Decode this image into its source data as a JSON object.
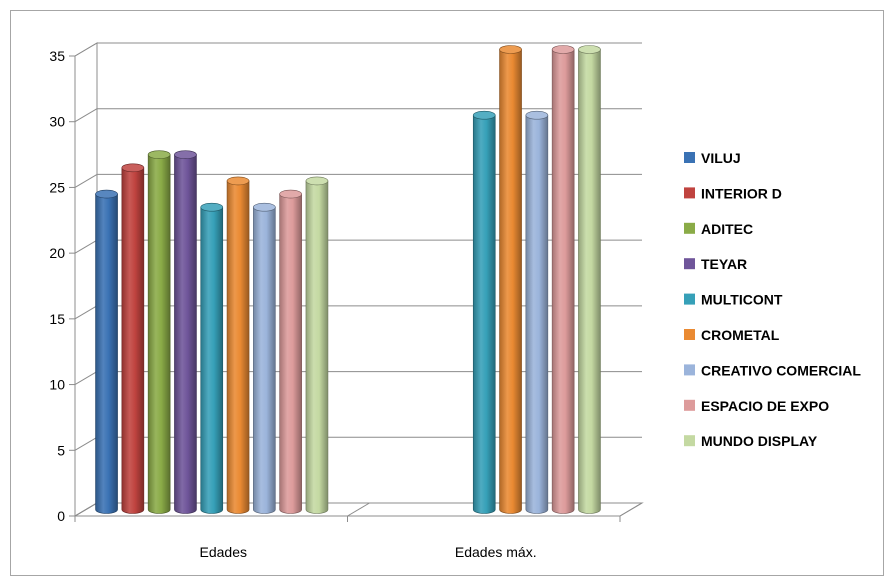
{
  "chart_data": {
    "type": "bar",
    "style": "3d-cylinder",
    "title": "",
    "xlabel": "",
    "ylabel": "",
    "ylim": [
      0,
      35
    ],
    "yticks": [
      "0",
      "5",
      "10",
      "15",
      "20",
      "25",
      "30",
      "35"
    ],
    "grid": true,
    "legend_position": "right",
    "categories": [
      "Edades",
      "Edades máx."
    ],
    "series": [
      {
        "name": "VILUJ",
        "color": "#3a72b4",
        "values": [
          24,
          null
        ]
      },
      {
        "name": "INTERIOR D",
        "color": "#c0433f",
        "values": [
          26,
          null
        ]
      },
      {
        "name": "ADITEC",
        "color": "#8aab47",
        "values": [
          27,
          null
        ]
      },
      {
        "name": "TEYAR",
        "color": "#6f559a",
        "values": [
          27,
          null
        ]
      },
      {
        "name": "MULTICONT",
        "color": "#36a0b8",
        "values": [
          23,
          30
        ]
      },
      {
        "name": "CROMETAL",
        "color": "#ea8a32",
        "values": [
          25,
          35
        ]
      },
      {
        "name": "CREATIVO COMERCIAL",
        "color": "#9bb4db",
        "values": [
          23,
          30
        ]
      },
      {
        "name": "ESPACIO DE EXPO",
        "color": "#dd9b9b",
        "values": [
          24,
          35
        ]
      },
      {
        "name": "MUNDO DISPLAY",
        "color": "#c4d9a2",
        "values": [
          25,
          35
        ]
      }
    ]
  }
}
